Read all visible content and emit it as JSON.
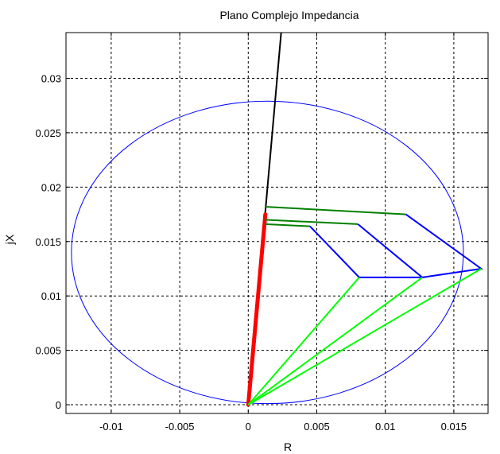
{
  "chart_data": {
    "type": "line",
    "title": "Plano Complejo Impedancia",
    "xlabel": "R",
    "ylabel": "jX",
    "xlim": [
      -0.0133,
      0.0175
    ],
    "ylim": [
      -0.0008,
      0.0342
    ],
    "xticks": [
      -0.01,
      -0.005,
      0,
      0.005,
      0.01,
      0.015
    ],
    "xtick_labels": [
      "-0.01",
      "-0.005",
      "0",
      "0.005",
      "0.01",
      "0.015"
    ],
    "yticks": [
      0,
      0.005,
      0.01,
      0.015,
      0.02,
      0.025,
      0.03
    ],
    "ytick_labels": [
      "0",
      "0.005",
      "0.01",
      "0.015",
      "0.02",
      "0.025",
      "0.03"
    ],
    "grid": true,
    "colors": {
      "circle": "#0000ff",
      "line_impedance": "#000000",
      "fault_segment": "#ff0000",
      "zone_outline": "#0000ff",
      "zone_top": "#008000",
      "zone_diagonal": "#00ff00"
    },
    "circle": {
      "center": [
        0.0014,
        0.014
      ],
      "radius_x": 0.0143,
      "radius_y": 0.0139
    },
    "series": [
      {
        "color": "#000000",
        "x": [
          0,
          0.0024
        ],
        "y": [
          0,
          0.0342
        ]
      },
      {
        "color": "#ff0000",
        "x": [
          0,
          0.00125
        ],
        "y": [
          0,
          0.0175
        ]
      },
      {
        "color": "#008000",
        "x": [
          0.0012,
          0.0115
        ],
        "y": [
          0.0182,
          0.0175
        ]
      },
      {
        "color": "#008000",
        "x": [
          0.0012,
          0.008
        ],
        "y": [
          0.017,
          0.0166
        ]
      },
      {
        "color": "#008000",
        "x": [
          0.0012,
          0.0045
        ],
        "y": [
          0.0166,
          0.0164
        ]
      },
      {
        "color": "#0000ff",
        "x": [
          0.0115,
          0.017,
          0.0127
        ],
        "y": [
          0.0175,
          0.0125,
          0.0117
        ]
      },
      {
        "color": "#0000ff",
        "x": [
          0.008,
          0.0127,
          0.008
        ],
        "y": [
          0.0166,
          0.0117,
          0.0117
        ]
      },
      {
        "color": "#0000ff",
        "x": [
          0.0045,
          0.0081,
          0.008
        ],
        "y": [
          0.0164,
          0.0117,
          0.0117
        ]
      },
      {
        "color": "#00ff00",
        "x": [
          0,
          0.017
        ],
        "y": [
          0,
          0.0125
        ]
      },
      {
        "color": "#00ff00",
        "x": [
          0,
          0.0127
        ],
        "y": [
          0,
          0.0117
        ]
      },
      {
        "color": "#00ff00",
        "x": [
          0,
          0.0081
        ],
        "y": [
          0,
          0.0117
        ]
      }
    ]
  }
}
